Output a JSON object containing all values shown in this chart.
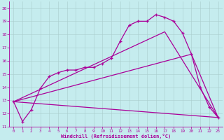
{
  "xlabel": "Windchill (Refroidissement éolien,°C)",
  "bg_color": "#c5ecee",
  "line_color": "#aa0099",
  "grid_color": "#aacccc",
  "ylim": [
    11,
    20.5
  ],
  "xlim": [
    -0.5,
    23.5
  ],
  "yticks": [
    11,
    12,
    13,
    14,
    15,
    16,
    17,
    18,
    19,
    20
  ],
  "xticks": [
    0,
    1,
    2,
    3,
    4,
    5,
    6,
    7,
    8,
    9,
    10,
    11,
    12,
    13,
    14,
    15,
    16,
    17,
    18,
    19,
    20,
    21,
    22,
    23
  ],
  "main_x": [
    0,
    1,
    2,
    3,
    4,
    5,
    6,
    7,
    8,
    9,
    10,
    11,
    12,
    13,
    14,
    15,
    16,
    17,
    18,
    19,
    20,
    21,
    22,
    23
  ],
  "main_y": [
    12.9,
    11.4,
    12.3,
    13.9,
    14.8,
    15.1,
    15.3,
    15.3,
    15.5,
    15.5,
    15.8,
    16.2,
    17.5,
    18.7,
    19.0,
    19.0,
    19.5,
    19.3,
    19.0,
    18.1,
    16.5,
    14.0,
    12.5,
    11.7
  ],
  "line1_x": [
    0,
    23
  ],
  "line1_y": [
    12.9,
    11.7
  ],
  "line2_x": [
    0,
    20,
    23
  ],
  "line2_y": [
    12.9,
    16.5,
    11.7
  ],
  "line3_x": [
    0,
    17,
    23
  ],
  "line3_y": [
    12.9,
    18.2,
    11.7
  ]
}
